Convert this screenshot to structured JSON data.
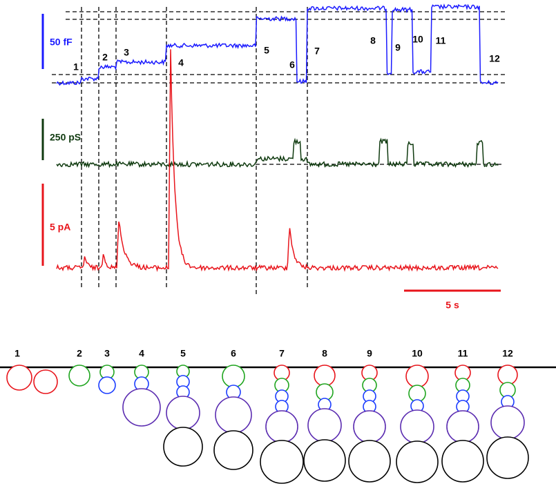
{
  "scale_bars": {
    "capacitance": "50 fF",
    "conductance": "250 pS",
    "current": "5 pA",
    "time": "5 s"
  },
  "events": [
    "1",
    "2",
    "3",
    "4",
    "5",
    "6",
    "7",
    "8",
    "9",
    "10",
    "11",
    "12"
  ],
  "schematic_labels": [
    "1",
    "2",
    "3",
    "4",
    "5",
    "6",
    "7",
    "8",
    "9",
    "10",
    "11",
    "12"
  ]
}
